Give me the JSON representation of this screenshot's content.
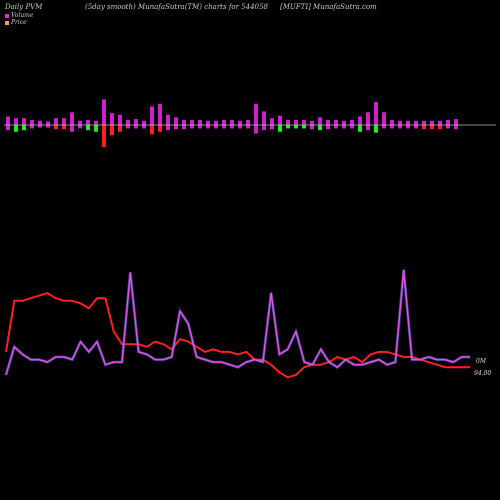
{
  "header": {
    "left": "Daily PVM",
    "center": "(5day smooth) MunafaSutra(TM) charts for 544058",
    "right": "[MUFTI] MunafaSutra.com"
  },
  "legend": {
    "volume_label": "Volume",
    "price_label": "Price",
    "volume_color": "#cc33cc",
    "price_color": "#ff4444"
  },
  "colors": {
    "background": "#000000",
    "baseline": "#bbbbbb",
    "vol_up": "#cc22cc",
    "vol_down": "#ff2222",
    "vol_green": "#22ee22",
    "price_line": "#ff2222",
    "volume_line": "#dd55dd",
    "volume_line_edge": "#6666ff"
  },
  "chart_data": [
    {
      "type": "bar",
      "name": "pvm-bars",
      "description_units": "relative volume bars around a baseline; positive above, negative below",
      "values": [
        {
          "up": 1.0,
          "down": 0.6,
          "c": "m"
        },
        {
          "up": 0.8,
          "down": 0.8,
          "c": "g"
        },
        {
          "up": 0.8,
          "down": 0.6,
          "c": "g"
        },
        {
          "up": 0.6,
          "down": 0.4,
          "c": "m"
        },
        {
          "up": 0.5,
          "down": 0.3,
          "c": "m"
        },
        {
          "up": 0.4,
          "down": 0.3,
          "c": "m"
        },
        {
          "up": 0.8,
          "down": 0.5,
          "c": "r"
        },
        {
          "up": 0.8,
          "down": 0.5,
          "c": "r"
        },
        {
          "up": 1.5,
          "down": 0.8,
          "c": "m"
        },
        {
          "up": 0.5,
          "down": 0.4,
          "c": "m"
        },
        {
          "up": 0.6,
          "down": 0.6,
          "c": "g"
        },
        {
          "up": 0.5,
          "down": 0.8,
          "c": "g"
        },
        {
          "up": 3.0,
          "down": 2.6,
          "c": "r"
        },
        {
          "up": 1.4,
          "down": 1.2,
          "c": "r"
        },
        {
          "up": 1.2,
          "down": 0.8,
          "c": "r"
        },
        {
          "up": 0.6,
          "down": 0.4,
          "c": "m"
        },
        {
          "up": 0.7,
          "down": 0.4,
          "c": "m"
        },
        {
          "up": 0.5,
          "down": 0.4,
          "c": "m"
        },
        {
          "up": 2.2,
          "down": 1.1,
          "c": "r"
        },
        {
          "up": 2.5,
          "down": 0.8,
          "c": "r"
        },
        {
          "up": 1.2,
          "down": 0.6,
          "c": "m"
        },
        {
          "up": 0.9,
          "down": 0.5,
          "c": "m"
        },
        {
          "up": 0.6,
          "down": 0.5,
          "c": "m"
        },
        {
          "up": 0.6,
          "down": 0.4,
          "c": "m"
        },
        {
          "up": 0.6,
          "down": 0.4,
          "c": "m"
        },
        {
          "up": 0.5,
          "down": 0.4,
          "c": "m"
        },
        {
          "up": 0.5,
          "down": 0.4,
          "c": "m"
        },
        {
          "up": 0.6,
          "down": 0.4,
          "c": "m"
        },
        {
          "up": 0.6,
          "down": 0.4,
          "c": "m"
        },
        {
          "up": 0.5,
          "down": 0.4,
          "c": "m"
        },
        {
          "up": 0.6,
          "down": 0.4,
          "c": "m"
        },
        {
          "up": 2.5,
          "down": 1.0,
          "c": "m"
        },
        {
          "up": 1.6,
          "down": 0.6,
          "c": "m"
        },
        {
          "up": 0.8,
          "down": 0.5,
          "c": "m"
        },
        {
          "up": 1.1,
          "down": 0.8,
          "c": "g"
        },
        {
          "up": 0.6,
          "down": 0.4,
          "c": "g"
        },
        {
          "up": 0.6,
          "down": 0.4,
          "c": "g"
        },
        {
          "up": 0.6,
          "down": 0.4,
          "c": "g"
        },
        {
          "up": 0.5,
          "down": 0.5,
          "c": "m"
        },
        {
          "up": 0.9,
          "down": 0.6,
          "c": "g"
        },
        {
          "up": 0.6,
          "down": 0.5,
          "c": "m"
        },
        {
          "up": 0.6,
          "down": 0.4,
          "c": "m"
        },
        {
          "up": 0.5,
          "down": 0.4,
          "c": "m"
        },
        {
          "up": 0.6,
          "down": 0.4,
          "c": "m"
        },
        {
          "up": 1.0,
          "down": 0.8,
          "c": "g"
        },
        {
          "up": 1.5,
          "down": 0.6,
          "c": "m"
        },
        {
          "up": 2.7,
          "down": 0.9,
          "c": "g"
        },
        {
          "up": 1.5,
          "down": 0.4,
          "c": "m"
        },
        {
          "up": 0.6,
          "down": 0.4,
          "c": "m"
        },
        {
          "up": 0.5,
          "down": 0.4,
          "c": "m"
        },
        {
          "up": 0.5,
          "down": 0.4,
          "c": "m"
        },
        {
          "up": 0.5,
          "down": 0.4,
          "c": "m"
        },
        {
          "up": 0.5,
          "down": 0.5,
          "c": "r"
        },
        {
          "up": 0.5,
          "down": 0.5,
          "c": "r"
        },
        {
          "up": 0.5,
          "down": 0.5,
          "c": "r"
        },
        {
          "up": 0.6,
          "down": 0.4,
          "c": "m"
        },
        {
          "up": 0.7,
          "down": 0.5,
          "c": "m"
        }
      ]
    },
    {
      "type": "line",
      "name": "price-volume-lines",
      "series": [
        {
          "name": "Price",
          "values": [
            76,
            96,
            96,
            97,
            98,
            99,
            97,
            96,
            96,
            95,
            93,
            97,
            97,
            84,
            79,
            79,
            79,
            78,
            80,
            79,
            77,
            81,
            80,
            78,
            76,
            77,
            76,
            76,
            75,
            76,
            73,
            73,
            71,
            68,
            66,
            67,
            70,
            71,
            71,
            72,
            74,
            73,
            74,
            72,
            75,
            76,
            76,
            75,
            74,
            74,
            73,
            72,
            71,
            70,
            70,
            70,
            70
          ]
        },
        {
          "name": "Volume",
          "values": [
            67,
            78,
            75,
            73,
            73,
            72,
            74,
            74,
            73,
            80,
            76,
            80,
            71,
            72,
            72,
            107,
            76,
            75,
            73,
            73,
            74,
            92,
            87,
            74,
            73,
            72,
            72,
            71,
            70,
            72,
            73,
            72,
            99,
            75,
            77,
            84,
            72,
            71,
            77,
            72,
            70,
            73,
            71,
            71,
            72,
            73,
            71,
            72,
            108,
            73,
            73,
            74,
            73,
            73,
            72,
            74,
            74
          ]
        }
      ],
      "end_labels": {
        "volume": "0M",
        "price": "94.00"
      }
    }
  ]
}
